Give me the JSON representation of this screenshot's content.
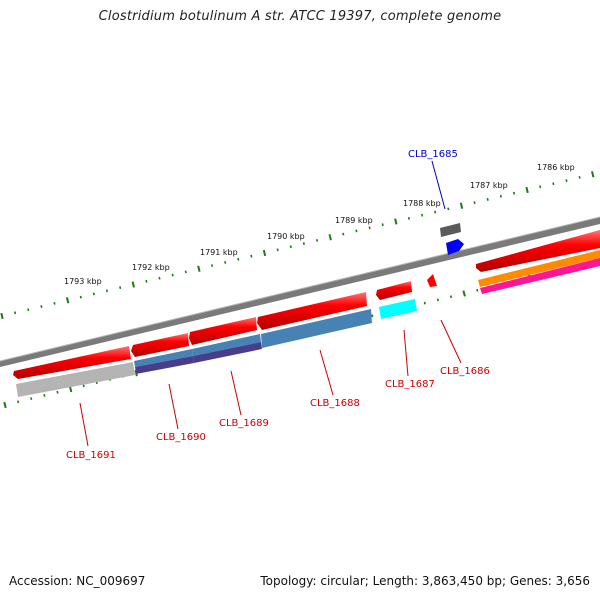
{
  "title": "Clostridium botulinum A str. ATCC 19397, complete genome",
  "footer": {
    "accession": "Accession: NC_009697",
    "summary": "Topology: circular; Length: 3,863,450 bp; Genes: 3,656"
  },
  "ruler_labels": [
    "1786 kbp",
    "1787 kbp",
    "1788 kbp",
    "1789 kbp",
    "1790 kbp",
    "1791 kbp",
    "1792 kbp",
    "1793 kbp"
  ],
  "gene_labels": [
    {
      "name": "CLB_1685",
      "color": "#0000cc"
    },
    {
      "name": "CLB_1686",
      "color": "#cc0000"
    },
    {
      "name": "CLB_1687",
      "color": "#cc0000"
    },
    {
      "name": "CLB_1688",
      "color": "#cc0000"
    },
    {
      "name": "CLB_1689",
      "color": "#cc0000"
    },
    {
      "name": "CLB_1690",
      "color": "#cc0000"
    },
    {
      "name": "CLB_1691",
      "color": "#cc0000"
    }
  ],
  "colors": {
    "backbone": "#808080",
    "cds": "#ff0000",
    "tick": "#1a7a1a",
    "steelblue": "#4682b4",
    "darkslateblue": "#483d8b",
    "cyan": "#00ffff",
    "gray": "#b0b0b0",
    "orange": "#ff8c00",
    "pink": "#ff1493",
    "blue": "#0000ff",
    "darkgray": "#555555"
  }
}
